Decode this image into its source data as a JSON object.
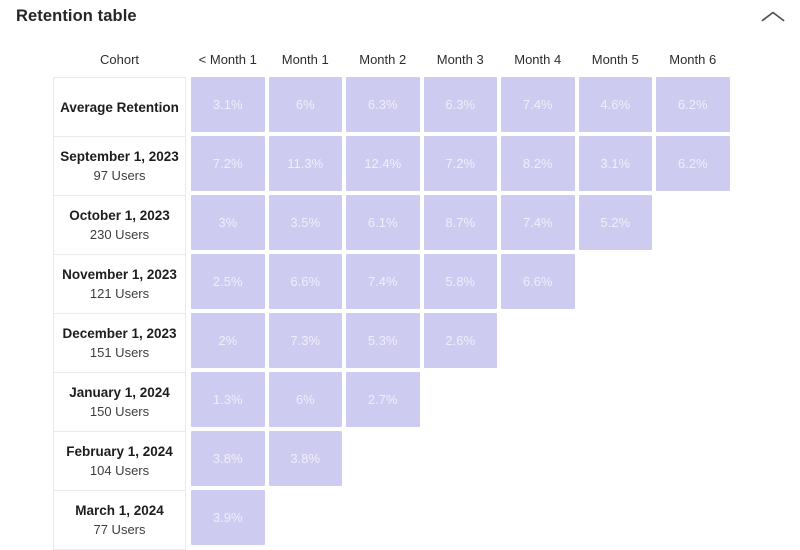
{
  "header": {
    "title": "Retention table",
    "collapse_icon": "chevron-up-icon"
  },
  "colors": {
    "cell_bg": "#cecbf0",
    "cell_text": "#f0eefa",
    "chevron": "#4f4f4f"
  },
  "table": {
    "columns": [
      "Cohort",
      "< Month 1",
      "Month 1",
      "Month 2",
      "Month 3",
      "Month 4",
      "Month 5",
      "Month 6"
    ],
    "rows": [
      {
        "label": "Average Retention",
        "sublabel": "",
        "values": [
          "3.1%",
          "6%",
          "6.3%",
          "6.3%",
          "7.4%",
          "4.6%",
          "6.2%"
        ]
      },
      {
        "label": "September 1, 2023",
        "sublabel": "97 Users",
        "values": [
          "7.2%",
          "11.3%",
          "12.4%",
          "7.2%",
          "8.2%",
          "3.1%",
          "6.2%"
        ]
      },
      {
        "label": "October 1, 2023",
        "sublabel": "230 Users",
        "values": [
          "3%",
          "3.5%",
          "6.1%",
          "8.7%",
          "7.4%",
          "5.2%"
        ]
      },
      {
        "label": "November 1, 2023",
        "sublabel": "121 Users",
        "values": [
          "2.5%",
          "6.6%",
          "7.4%",
          "5.8%",
          "6.6%"
        ]
      },
      {
        "label": "December 1, 2023",
        "sublabel": "151 Users",
        "values": [
          "2%",
          "7.3%",
          "5.3%",
          "2.6%"
        ]
      },
      {
        "label": "January 1, 2024",
        "sublabel": "150 Users",
        "values": [
          "1.3%",
          "6%",
          "2.7%"
        ]
      },
      {
        "label": "February 1, 2024",
        "sublabel": "104 Users",
        "values": [
          "3.8%",
          "3.8%"
        ]
      },
      {
        "label": "March 1, 2024",
        "sublabel": "77 Users",
        "values": [
          "3.9%"
        ]
      }
    ]
  },
  "chart_data": {
    "type": "table",
    "title": "Retention table",
    "columns": [
      "< Month 1",
      "Month 1",
      "Month 2",
      "Month 3",
      "Month 4",
      "Month 5",
      "Month 6"
    ],
    "rows": [
      {
        "cohort": "Average Retention",
        "users": null,
        "retention_pct": [
          3.1,
          6,
          6.3,
          6.3,
          7.4,
          4.6,
          6.2
        ]
      },
      {
        "cohort": "September 1, 2023",
        "users": 97,
        "retention_pct": [
          7.2,
          11.3,
          12.4,
          7.2,
          8.2,
          3.1,
          6.2
        ]
      },
      {
        "cohort": "October 1, 2023",
        "users": 230,
        "retention_pct": [
          3,
          3.5,
          6.1,
          8.7,
          7.4,
          5.2
        ]
      },
      {
        "cohort": "November 1, 2023",
        "users": 121,
        "retention_pct": [
          2.5,
          6.6,
          7.4,
          5.8,
          6.6
        ]
      },
      {
        "cohort": "December 1, 2023",
        "users": 151,
        "retention_pct": [
          2,
          7.3,
          5.3,
          2.6
        ]
      },
      {
        "cohort": "January 1, 2024",
        "users": 150,
        "retention_pct": [
          1.3,
          6,
          2.7
        ]
      },
      {
        "cohort": "February 1, 2024",
        "users": 104,
        "retention_pct": [
          3.8,
          3.8
        ]
      },
      {
        "cohort": "March 1, 2024",
        "users": 77,
        "retention_pct": [
          3.9
        ]
      }
    ]
  }
}
